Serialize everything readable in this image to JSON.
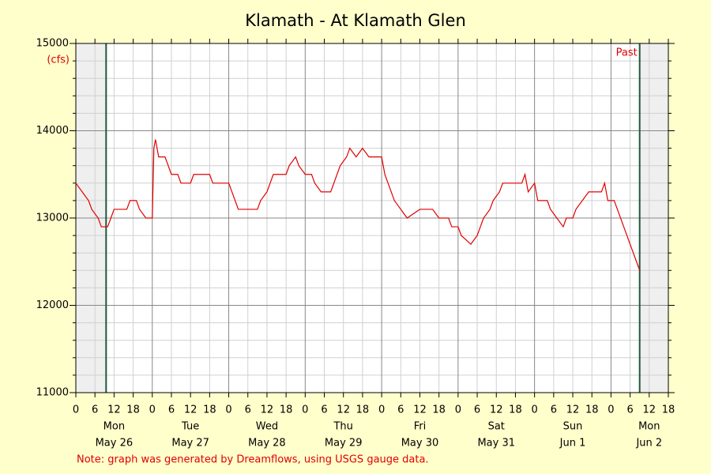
{
  "chart_data": {
    "type": "line",
    "title": "Klamath - At Klamath Glen",
    "y_label": "(cfs)",
    "annotation": "Past",
    "note": "Note: graph was generated by Dreamflows, using USGS gauge data.",
    "color": "#e00000",
    "shade_before": 9.5,
    "shade_after": 177,
    "xlim": [
      0,
      186
    ],
    "ylim": [
      11000,
      15000
    ],
    "yticks": [
      11000,
      12000,
      13000,
      14000,
      15000
    ],
    "yminor": [
      11200,
      11400,
      11600,
      11800,
      12200,
      12400,
      12600,
      12800,
      13200,
      13400,
      13600,
      13800,
      14200,
      14400,
      14600,
      14800
    ],
    "grid": true,
    "xticks": [
      {
        "value": 0,
        "label": "0"
      },
      {
        "value": 6,
        "label": "6"
      },
      {
        "value": 12,
        "label": "12"
      },
      {
        "value": 18,
        "label": "18"
      },
      {
        "value": 24,
        "label": "0"
      },
      {
        "value": 30,
        "label": "6"
      },
      {
        "value": 36,
        "label": "12"
      },
      {
        "value": 42,
        "label": "18"
      },
      {
        "value": 48,
        "label": "0"
      },
      {
        "value": 54,
        "label": "6"
      },
      {
        "value": 60,
        "label": "12"
      },
      {
        "value": 66,
        "label": "18"
      },
      {
        "value": 72,
        "label": "0"
      },
      {
        "value": 78,
        "label": "6"
      },
      {
        "value": 84,
        "label": "12"
      },
      {
        "value": 90,
        "label": "18"
      },
      {
        "value": 96,
        "label": "0"
      },
      {
        "value": 102,
        "label": "6"
      },
      {
        "value": 108,
        "label": "12"
      },
      {
        "value": 114,
        "label": "18"
      },
      {
        "value": 120,
        "label": "0"
      },
      {
        "value": 126,
        "label": "6"
      },
      {
        "value": 132,
        "label": "12"
      },
      {
        "value": 138,
        "label": "18"
      },
      {
        "value": 144,
        "label": "0"
      },
      {
        "value": 150,
        "label": "6"
      },
      {
        "value": 156,
        "label": "12"
      },
      {
        "value": 162,
        "label": "18"
      },
      {
        "value": 168,
        "label": "0"
      },
      {
        "value": 174,
        "label": "6"
      },
      {
        "value": 180,
        "label": "12"
      },
      {
        "value": 186,
        "label": "18"
      }
    ],
    "day_labels": [
      {
        "value": 12,
        "weekday": "Mon",
        "date": "May 26"
      },
      {
        "value": 36,
        "weekday": "Tue",
        "date": "May 27"
      },
      {
        "value": 60,
        "weekday": "Wed",
        "date": "May 28"
      },
      {
        "value": 84,
        "weekday": "Thu",
        "date": "May 29"
      },
      {
        "value": 108,
        "weekday": "Fri",
        "date": "May 30"
      },
      {
        "value": 132,
        "weekday": "Sat",
        "date": "May 31"
      },
      {
        "value": 156,
        "weekday": "Sun",
        "date": "Jun 1"
      },
      {
        "value": 180,
        "weekday": "Mon",
        "date": "Jun 2"
      }
    ],
    "x": [
      0,
      2,
      4,
      5,
      7,
      8,
      10,
      11,
      12,
      16,
      17,
      19,
      20,
      22,
      24,
      24.5,
      25,
      26,
      28,
      29,
      30,
      32,
      33,
      36,
      37,
      42,
      43,
      48,
      49,
      50,
      51,
      57,
      58,
      60,
      61,
      62,
      66,
      67,
      69,
      70,
      72,
      74,
      75,
      77,
      80,
      81,
      82,
      83,
      85,
      86,
      88,
      90,
      92,
      96,
      97,
      98,
      99,
      100,
      102,
      104,
      108,
      112,
      114,
      117,
      118,
      120,
      121,
      124,
      126,
      127,
      128,
      130,
      131,
      133,
      134,
      140,
      141,
      142,
      144,
      145,
      148,
      149,
      151,
      153,
      154,
      156,
      157,
      159,
      161,
      165,
      166,
      167,
      169,
      170,
      172,
      173,
      174,
      175,
      176,
      177
    ],
    "values": [
      13400,
      13300,
      13200,
      13100,
      13000,
      12900,
      12900,
      13000,
      13100,
      13100,
      13200,
      13200,
      13100,
      13000,
      13000,
      13800,
      13900,
      13700,
      13700,
      13600,
      13500,
      13500,
      13400,
      13400,
      13500,
      13500,
      13400,
      13400,
      13300,
      13200,
      13100,
      13100,
      13200,
      13300,
      13400,
      13500,
      13500,
      13600,
      13700,
      13600,
      13500,
      13500,
      13400,
      13300,
      13300,
      13400,
      13500,
      13600,
      13700,
      13800,
      13700,
      13800,
      13700,
      13700,
      13500,
      13400,
      13300,
      13200,
      13100,
      13000,
      13100,
      13100,
      13000,
      13000,
      12900,
      12900,
      12800,
      12700,
      12800,
      12900,
      13000,
      13100,
      13200,
      13300,
      13400,
      13400,
      13500,
      13300,
      13400,
      13200,
      13200,
      13100,
      13000,
      12900,
      13000,
      13000,
      13100,
      13200,
      13300,
      13300,
      13400,
      13200,
      13200,
      13100,
      12900,
      12800,
      12700,
      12600,
      12500,
      12400
    ]
  }
}
